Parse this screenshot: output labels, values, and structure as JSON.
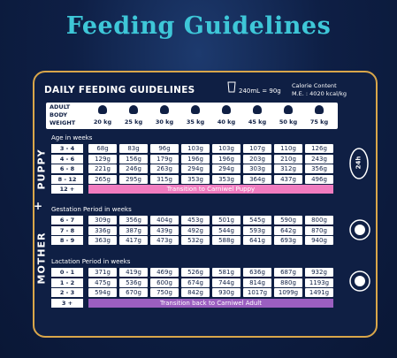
{
  "title": "Feeding Guidelines",
  "header": {
    "heading": "DAILY FEEDING GUIDELINES",
    "conversion": "240mL = 90g",
    "calorie_label": "Calorie Content",
    "calorie_value": "M.E. : 4020 kcal/kg"
  },
  "weight_header": {
    "label": "ADULT BODY WEIGHT",
    "weights": [
      "20 kg",
      "25 kg",
      "30 kg",
      "35 kg",
      "40 kg",
      "45 kg",
      "50 kg",
      "75 kg"
    ]
  },
  "side_icon_text": "24h",
  "sections": [
    {
      "label": "PUPPY",
      "groups": [
        {
          "title": "Age in weeks",
          "rows": [
            {
              "label": "3 - 4",
              "cells": [
                "68g",
                "83g",
                "96g",
                "103g",
                "103g",
                "107g",
                "110g",
                "126g"
              ]
            },
            {
              "label": "4 - 6",
              "cells": [
                "129g",
                "156g",
                "179g",
                "196g",
                "196g",
                "203g",
                "210g",
                "243g"
              ]
            },
            {
              "label": "6 - 8",
              "cells": [
                "221g",
                "246g",
                "263g",
                "294g",
                "294g",
                "303g",
                "312g",
                "356g"
              ]
            },
            {
              "label": "8 - 12",
              "cells": [
                "265g",
                "295g",
                "315g",
                "353g",
                "353g",
                "364g",
                "437g",
                "496g"
              ]
            },
            {
              "label": "12 +",
              "note": "Transition to Carniwel Puppy"
            }
          ]
        }
      ]
    },
    {
      "label": "MOTHER",
      "groups": [
        {
          "title": "Gestation Period in weeks",
          "rows": [
            {
              "label": "6 - 7",
              "cells": [
                "309g",
                "356g",
                "404g",
                "453g",
                "501g",
                "545g",
                "590g",
                "800g"
              ]
            },
            {
              "label": "7 - 8",
              "cells": [
                "336g",
                "387g",
                "439g",
                "492g",
                "544g",
                "593g",
                "642g",
                "870g"
              ]
            },
            {
              "label": "8 - 9",
              "cells": [
                "363g",
                "417g",
                "473g",
                "532g",
                "588g",
                "641g",
                "693g",
                "940g"
              ]
            }
          ]
        },
        {
          "title": "Lactation Period in weeks",
          "rows": [
            {
              "label": "0 - 1",
              "cells": [
                "371g",
                "419g",
                "469g",
                "526g",
                "581g",
                "636g",
                "687g",
                "932g"
              ]
            },
            {
              "label": "1 - 2",
              "cells": [
                "475g",
                "536g",
                "600g",
                "674g",
                "744g",
                "814g",
                "880g",
                "1193g"
              ]
            },
            {
              "label": "2 - 3",
              "cells": [
                "594g",
                "670g",
                "750g",
                "842g",
                "930g",
                "1017g",
                "1099g",
                "1491g"
              ]
            },
            {
              "label": "3 +",
              "note": "Transition back to Carniwel Adult"
            }
          ]
        }
      ]
    }
  ]
}
